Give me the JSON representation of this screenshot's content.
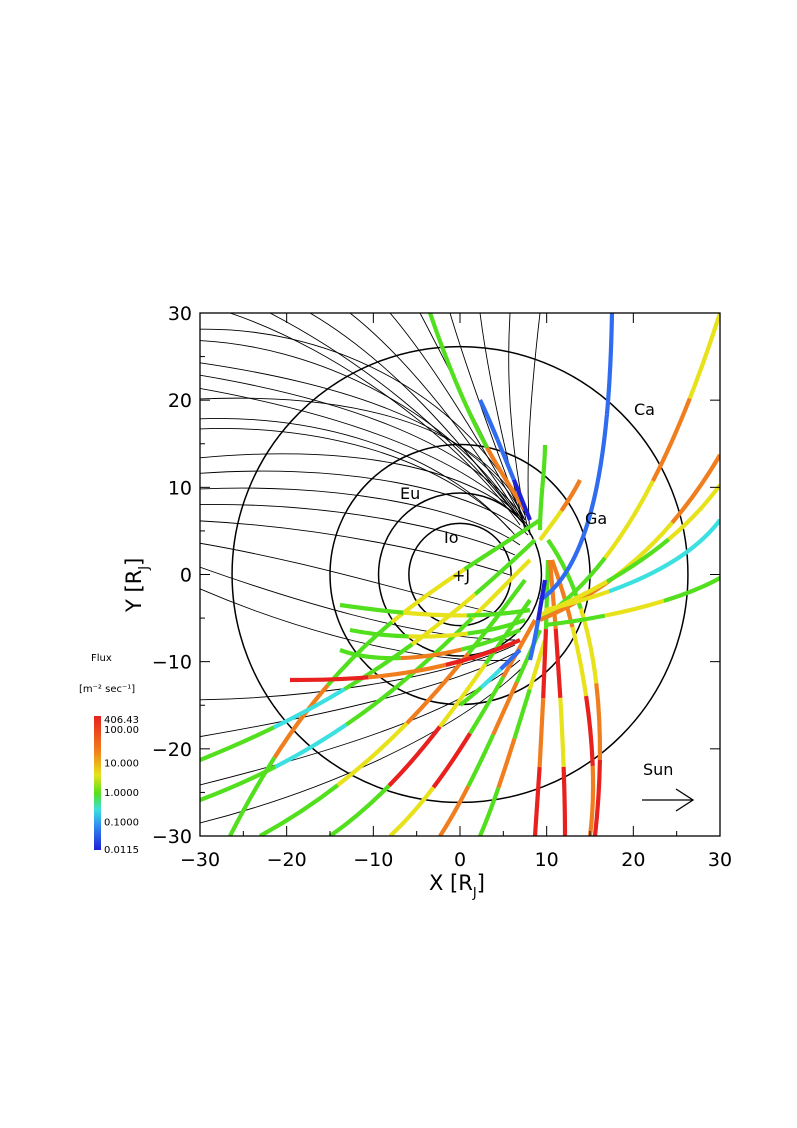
{
  "chart_data": {
    "type": "line",
    "xlabel_main": "X [R",
    "xlabel_sub": "J",
    "xlabel_close": "]",
    "ylabel_main": "Y [R",
    "ylabel_sub": "J",
    "ylabel_close": "]",
    "xlim": [
      -30,
      30
    ],
    "ylim": [
      -30,
      30
    ],
    "x_ticks": [
      -30,
      -20,
      -10,
      0,
      10,
      20,
      30
    ],
    "y_ticks": [
      -30,
      -20,
      -10,
      0,
      10,
      20,
      30
    ],
    "x_tick_labels": [
      "−30",
      "−20",
      "−10",
      "0",
      "10",
      "20",
      "30"
    ],
    "y_tick_labels": [
      "−30",
      "−20",
      "−10",
      "0",
      "10",
      "20",
      "30"
    ],
    "orbits": [
      {
        "name": "Io",
        "radius": 5.9
      },
      {
        "name": "Eu",
        "radius": 9.4
      },
      {
        "name": "Ga",
        "radius": 15.0
      },
      {
        "name": "Ca",
        "radius": 26.3
      }
    ],
    "jupiter_label": "+J",
    "sun_label": "Sun",
    "colorbar": {
      "title": "Flux",
      "units_text": "[m⁻² sec⁻¹]",
      "tick_labels": [
        "406.43",
        "100.00",
        "10.000",
        "1.0000",
        "0.1000",
        "0.0115"
      ],
      "tick_values": [
        406.43,
        100.0,
        10.0,
        1.0,
        0.1,
        0.0115
      ]
    },
    "colors": {
      "red": "#e8211f",
      "orange": "#f07e1e",
      "yellow": "#e7e21a",
      "green": "#52e01e",
      "cyan": "#3ce0e0",
      "blue": "#2f6cf0",
      "darkblue": "#2020d8"
    }
  }
}
